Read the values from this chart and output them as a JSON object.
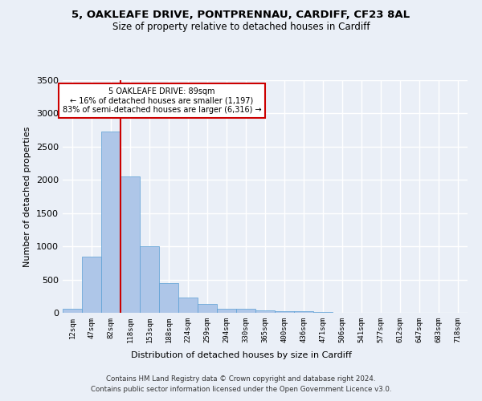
{
  "title1": "5, OAKLEAFE DRIVE, PONTPRENNAU, CARDIFF, CF23 8AL",
  "title2": "Size of property relative to detached houses in Cardiff",
  "xlabel": "Distribution of detached houses by size in Cardiff",
  "ylabel": "Number of detached properties",
  "categories": [
    "12sqm",
    "47sqm",
    "82sqm",
    "118sqm",
    "153sqm",
    "188sqm",
    "224sqm",
    "259sqm",
    "294sqm",
    "330sqm",
    "365sqm",
    "400sqm",
    "436sqm",
    "471sqm",
    "506sqm",
    "541sqm",
    "577sqm",
    "612sqm",
    "647sqm",
    "683sqm",
    "718sqm"
  ],
  "values": [
    60,
    850,
    2725,
    2050,
    1000,
    450,
    225,
    135,
    65,
    55,
    40,
    30,
    20,
    10,
    5,
    3,
    2,
    1,
    1,
    0,
    0
  ],
  "bar_color": "#aec6e8",
  "bar_edge_color": "#5a9fd4",
  "vline_color": "#cc0000",
  "annotation_text": "5 OAKLEAFE DRIVE: 89sqm\n← 16% of detached houses are smaller (1,197)\n83% of semi-detached houses are larger (6,316) →",
  "annotation_box_color": "#ffffff",
  "annotation_border_color": "#cc0000",
  "ylim": [
    0,
    3500
  ],
  "yticks": [
    0,
    500,
    1000,
    1500,
    2000,
    2500,
    3000,
    3500
  ],
  "footer1": "Contains HM Land Registry data © Crown copyright and database right 2024.",
  "footer2": "Contains public sector information licensed under the Open Government Licence v3.0.",
  "bg_color": "#eaeff7",
  "plot_bg_color": "#eaeff7",
  "grid_color": "#ffffff",
  "title1_fontsize": 9.5,
  "title2_fontsize": 8.5,
  "vline_index": 2
}
